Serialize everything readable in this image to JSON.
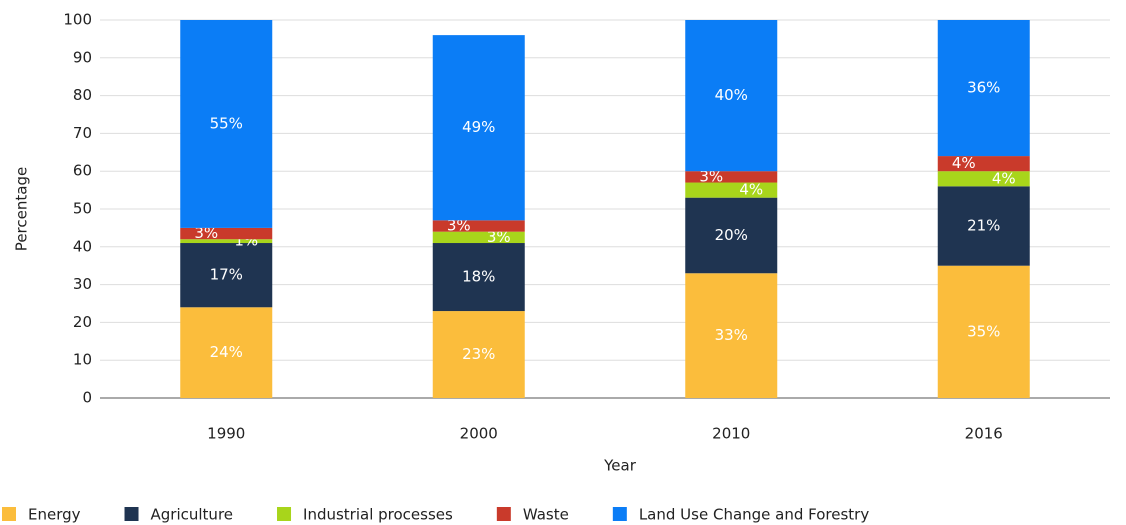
{
  "chart_data": {
    "type": "stacked_bar",
    "x_label": "Year",
    "y_label": "Percentage",
    "categories": [
      "1990",
      "2000",
      "2010",
      "2016"
    ],
    "series": [
      {
        "name": "Energy",
        "color": "#fbbd3c",
        "values": [
          24,
          23,
          33,
          35
        ],
        "value_labels": [
          "24%",
          "23%",
          "33%",
          "35%"
        ]
      },
      {
        "name": "Agriculture",
        "color": "#1f3451",
        "values": [
          17,
          18,
          20,
          21
        ],
        "value_labels": [
          "17%",
          "18%",
          "20%",
          "21%"
        ]
      },
      {
        "name": "Industrial processes",
        "color": "#a8d51b",
        "values": [
          1,
          3,
          4,
          4
        ],
        "value_labels": [
          "1%",
          "3%",
          "4%",
          "4%"
        ]
      },
      {
        "name": "Waste",
        "color": "#c93a2b",
        "values": [
          3,
          3,
          3,
          4
        ],
        "value_labels": [
          "3%",
          "3%",
          "3%",
          "4%"
        ]
      },
      {
        "name": "Land Use Change and Forestry",
        "color": "#0b7df6",
        "values": [
          55,
          49,
          40,
          36
        ],
        "value_labels": [
          "55%",
          "49%",
          "40%",
          "36%"
        ]
      }
    ],
    "ylim": [
      0,
      100
    ],
    "yticks": [
      0,
      10,
      20,
      30,
      40,
      50,
      60,
      70,
      80,
      90,
      100
    ],
    "grid": true,
    "legend": "bottom"
  }
}
